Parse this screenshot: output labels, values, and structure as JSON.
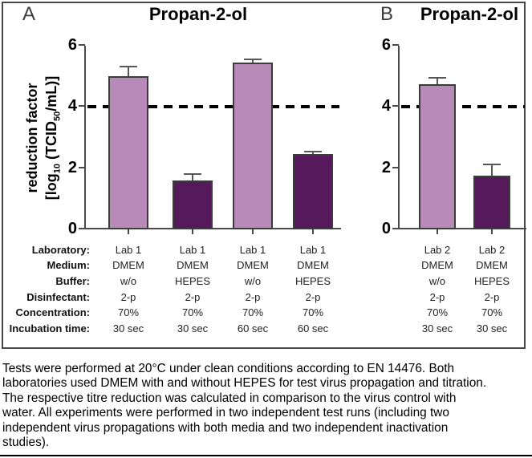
{
  "figure": {
    "panel_labels": {
      "a": "A",
      "b": "B"
    },
    "ylabel": {
      "line1": "reduction factor",
      "line2_pre": "[log",
      "sub1": "10",
      "line2_mid": " (TCID",
      "sub2": "50",
      "line2_post": "/mL)]"
    }
  },
  "chart_data": [
    {
      "type": "bar",
      "panel": "A",
      "title": "Propan-2-ol",
      "categories": [
        "Lab 1 / DMEM / w/o / 2-p / 70% / 30 sec",
        "Lab 1 / DMEM / HEPES / 2-p / 70% / 30 sec",
        "Lab 1 / DMEM / w/o / 2-p / 70% / 60 sec",
        "Lab 1 / DMEM / HEPES / 2-p / 70% / 60 sec"
      ],
      "values": [
        5.0,
        1.6,
        5.45,
        2.45
      ],
      "errors_plus": [
        0.3,
        0.18,
        0.08,
        0.06
      ],
      "bar_colors": [
        "#b78ab8",
        "#561a5c",
        "#b78ab8",
        "#561a5c"
      ],
      "ylabel": "reduction factor [log10 (TCID50/mL)]",
      "ylim": [
        0,
        6
      ],
      "yticks": [
        0,
        2,
        4,
        6
      ],
      "reference_line_y": 4,
      "reference_line_style": "dashed",
      "grid": false,
      "legend": "none"
    },
    {
      "type": "bar",
      "panel": "B",
      "title": "Propan-2-ol",
      "categories": [
        "Lab 2 / DMEM / w/o / 2-p / 70% / 30 sec",
        "Lab 2 / DMEM / HEPES / 2-p / 70% / 30 sec"
      ],
      "values": [
        4.75,
        1.75
      ],
      "errors_plus": [
        0.18,
        0.35
      ],
      "bar_colors": [
        "#b78ab8",
        "#561a5c"
      ],
      "ylabel": "reduction factor [log10 (TCID50/mL)]",
      "ylim": [
        0,
        6
      ],
      "yticks": [
        0,
        2,
        4,
        6
      ],
      "reference_line_y": 4,
      "reference_line_style": "dashed",
      "grid": false,
      "legend": "none"
    }
  ],
  "table": {
    "row_labels": [
      "Laboratory:",
      "Medium:",
      "Buffer:",
      "Disinfectant:",
      "Concentration:",
      "Incubation time:"
    ],
    "rows": [
      [
        "Lab 1",
        "Lab 1",
        "Lab 1",
        "Lab 1",
        "Lab 2",
        "Lab 2"
      ],
      [
        "DMEM",
        "DMEM",
        "DMEM",
        "DMEM",
        "DMEM",
        "DMEM"
      ],
      [
        "w/o",
        "HEPES",
        "w/o",
        "HEPES",
        "w/o",
        "HEPES"
      ],
      [
        "2-p",
        "2-p",
        "2-p",
        "2-p",
        "2-p",
        "2-p"
      ],
      [
        "70%",
        "70%",
        "70%",
        "70%",
        "70%",
        "70%"
      ],
      [
        "30 sec",
        "30 sec",
        "60 sec",
        "60 sec",
        "30 sec",
        "30 sec"
      ]
    ]
  },
  "caption": {
    "lines": [
      "Tests were performed at 20°C under clean conditions according to EN 14476. Both",
      "laboratories used DMEM with and without HEPES for test virus propagation and titration.",
      "The respective titre reduction was calculated in comparison to the virus control with",
      "water. All experiments were performed in two independent test runs (including two",
      "independent virus propagations with both media and two independent inactivation",
      "studies)."
    ]
  },
  "colors": {
    "light_bar": "#b78ab8",
    "dark_bar": "#561a5c",
    "axis": "#4a4a4a",
    "error_bar": "#575757",
    "threshold_line": "#000000",
    "bar_outline": "#3b3b3b"
  }
}
